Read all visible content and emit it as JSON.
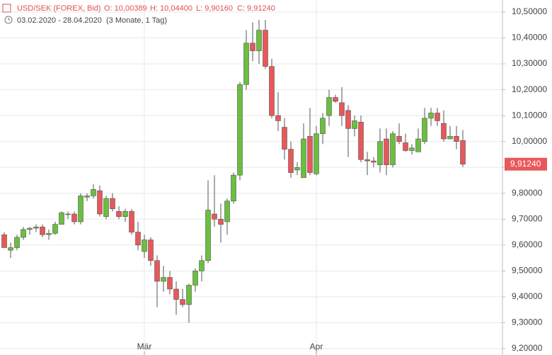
{
  "chart_data": {
    "type": "candlestick",
    "title": "USD/SEK (FOREX, Bid)",
    "ohlc_info": {
      "open": "O: 10,00389",
      "high": "H: 10,04400",
      "low": "L: 9,90160",
      "close": "C: 9,91240"
    },
    "date_range": "03.02.2020 - 28.04.2020",
    "period": "(3 Monate, 1 Tag)",
    "categories": [
      null,
      null,
      null,
      null,
      null,
      null,
      null,
      null,
      null,
      null,
      null,
      null,
      null,
      null,
      null,
      null,
      null,
      null,
      null,
      null,
      null,
      null,
      "Mär",
      null,
      null,
      null,
      null,
      null,
      null,
      null,
      null,
      null,
      null,
      null,
      null,
      null,
      null,
      null,
      null,
      null,
      null,
      null,
      null,
      null,
      null,
      null,
      null,
      null,
      null,
      "Apr",
      null,
      null,
      null,
      null,
      null,
      null,
      null,
      null,
      null,
      null,
      null,
      null,
      null,
      null,
      null,
      null,
      null,
      null,
      null,
      null,
      null,
      null,
      null
    ],
    "series": [
      {
        "up_color": "#6abf3f",
        "down_color": "#e8585a",
        "open": [
          9.64,
          9.58,
          9.59,
          9.63,
          9.66,
          9.665,
          9.67,
          9.64,
          9.645,
          9.68,
          9.72,
          9.72,
          9.69,
          9.785,
          9.79,
          9.81,
          9.71,
          9.78,
          9.73,
          9.71,
          9.73,
          9.65,
          9.575,
          9.62,
          9.54,
          9.46,
          9.475,
          9.43,
          9.39,
          9.37,
          9.445,
          9.5,
          9.54,
          9.72,
          9.7,
          9.69,
          9.77,
          9.87,
          10.22,
          10.38,
          10.35,
          10.43,
          10.29,
          10.1,
          10.055,
          9.97,
          9.89,
          9.86,
          10.02,
          9.875,
          10.03,
          10.1,
          10.17,
          10.15,
          10.12,
          10.05,
          10.075,
          9.93,
          9.925,
          9.91,
          10.01,
          9.91,
          10.02,
          9.995,
          9.965,
          9.96,
          10.0,
          10.09,
          10.11,
          10.07,
          10.01,
          10.02,
          10.00389
        ],
        "high": [
          9.65,
          9.61,
          9.64,
          9.67,
          9.67,
          9.68,
          9.68,
          9.66,
          9.69,
          9.73,
          9.73,
          9.73,
          9.8,
          9.8,
          9.835,
          9.83,
          9.79,
          9.8,
          9.75,
          9.74,
          9.74,
          9.69,
          9.64,
          9.63,
          9.56,
          9.52,
          9.5,
          9.46,
          9.43,
          9.45,
          9.51,
          9.56,
          9.85,
          9.87,
          9.76,
          9.78,
          9.88,
          10.23,
          10.43,
          10.46,
          10.47,
          10.47,
          10.32,
          10.19,
          10.09,
          10.0,
          9.92,
          10.07,
          10.13,
          10.06,
          10.11,
          10.2,
          10.18,
          10.21,
          10.14,
          10.1,
          10.1,
          9.96,
          9.94,
          10.05,
          10.05,
          10.04,
          10.07,
          10.03,
          9.99,
          10.05,
          10.13,
          10.13,
          10.13,
          10.12,
          10.06,
          10.06,
          10.044
        ],
        "low": [
          9.59,
          9.55,
          9.58,
          9.62,
          9.64,
          9.65,
          9.63,
          9.62,
          9.64,
          9.68,
          9.7,
          9.68,
          9.68,
          9.77,
          9.78,
          9.71,
          9.7,
          9.73,
          9.7,
          9.69,
          9.64,
          9.58,
          9.55,
          9.52,
          9.36,
          9.42,
          9.41,
          9.33,
          9.36,
          9.3,
          9.42,
          9.46,
          9.53,
          9.67,
          9.61,
          9.64,
          9.76,
          9.85,
          10.2,
          10.31,
          10.3,
          10.28,
          10.09,
          10.04,
          9.93,
          9.86,
          9.87,
          9.86,
          9.87,
          9.87,
          9.99,
          10.06,
          10.15,
          10.06,
          9.94,
          10.02,
          9.92,
          9.87,
          9.9,
          9.88,
          9.87,
          9.9,
          9.99,
          9.96,
          9.95,
          9.96,
          9.99,
          10.06,
          10.06,
          10.0,
          10.01,
          9.97,
          9.9016
        ],
        "close": [
          9.59,
          9.59,
          9.63,
          9.66,
          9.665,
          9.67,
          9.64,
          9.645,
          9.68,
          9.725,
          9.72,
          9.69,
          9.79,
          9.79,
          9.815,
          9.72,
          9.78,
          9.74,
          9.71,
          9.73,
          9.65,
          9.6,
          9.62,
          9.54,
          9.46,
          9.475,
          9.43,
          9.39,
          9.37,
          9.445,
          9.5,
          9.54,
          9.735,
          9.7,
          9.68,
          9.77,
          9.87,
          10.22,
          10.38,
          10.35,
          10.43,
          10.29,
          10.1,
          10.08,
          9.97,
          9.88,
          9.9,
          10.01,
          9.88,
          10.03,
          10.09,
          10.17,
          10.155,
          10.1,
          10.05,
          10.08,
          9.93,
          9.925,
          9.92,
          10.0,
          9.91,
          10.03,
          10.0,
          9.965,
          9.975,
          10.01,
          10.09,
          10.11,
          10.08,
          10.01,
          10.02,
          10.0,
          9.9124
        ]
      }
    ],
    "last_price": {
      "value": 9.9124,
      "label": "9,91240"
    },
    "ylim": [
      9.2,
      10.5
    ],
    "yticks": [
      {
        "value": 9.2,
        "label": "9,20000"
      },
      {
        "value": 9.3,
        "label": "9,30000"
      },
      {
        "value": 9.4,
        "label": "9,40000"
      },
      {
        "value": 9.5,
        "label": "9,50000"
      },
      {
        "value": 9.6,
        "label": "9,60000"
      },
      {
        "value": 9.7,
        "label": "9,70000"
      },
      {
        "value": 9.8,
        "label": "9,80000"
      },
      {
        "value": 9.9,
        "label": "9,90000"
      },
      {
        "value": 10.0,
        "label": "10,00000"
      },
      {
        "value": 10.1,
        "label": "10,10000"
      },
      {
        "value": 10.2,
        "label": "10,20000"
      },
      {
        "value": 10.3,
        "label": "10,30000"
      },
      {
        "value": 10.4,
        "label": "10,40000"
      },
      {
        "value": 10.5,
        "label": "10,50000"
      }
    ],
    "grid": true,
    "y_axis_side": "right"
  }
}
